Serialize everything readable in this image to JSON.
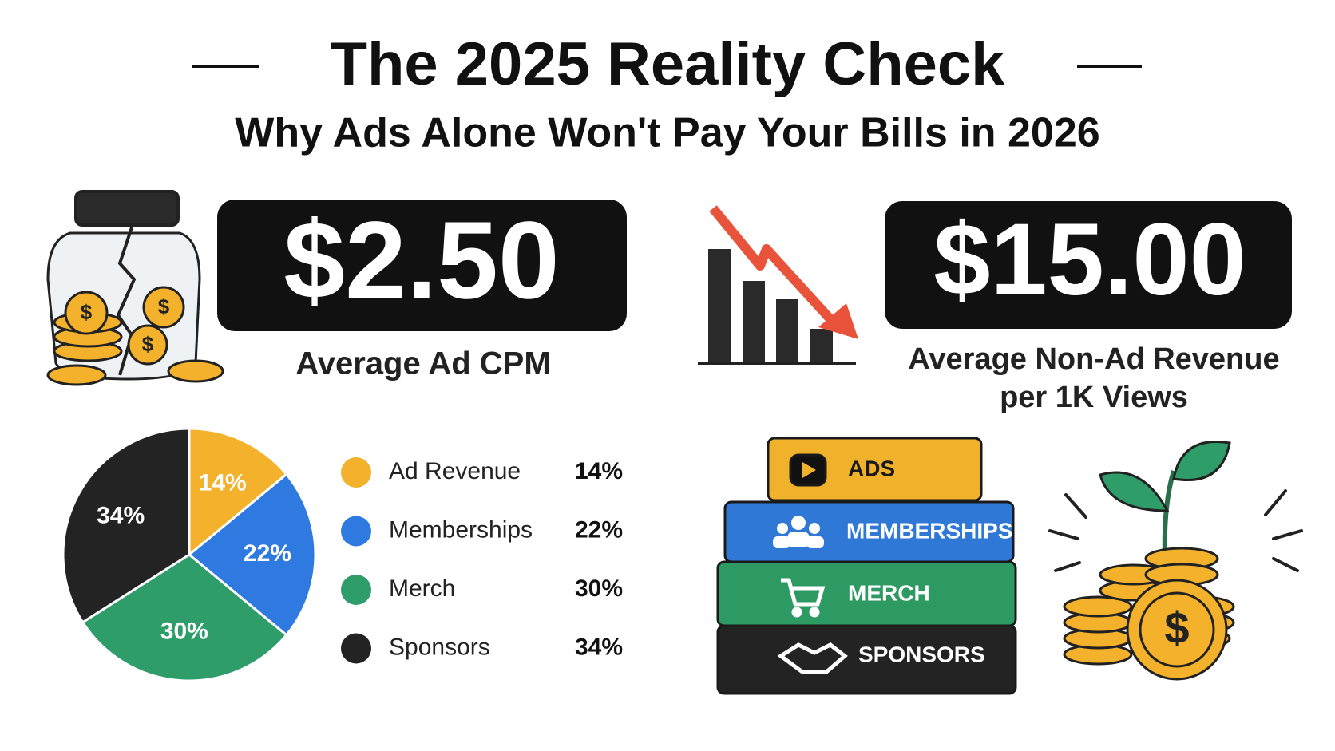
{
  "header": {
    "title": "The 2025 Reality Check",
    "subtitle": "Why Ads Alone Won't Pay Your Bills in 2026"
  },
  "stats": [
    {
      "value": "$2.50",
      "label": [
        "Average Ad CPM"
      ]
    },
    {
      "value": "$15.00",
      "label": [
        "Average Non-Ad Revenue",
        "per 1K Views"
      ]
    }
  ],
  "chart_data": {
    "type": "pie",
    "categories": [
      "Ad Revenue",
      "Memberships",
      "Merch",
      "Sponsors"
    ],
    "values": [
      14,
      22,
      30,
      34
    ],
    "value_labels": [
      "14%",
      "22%",
      "30%",
      "34%"
    ],
    "colors": [
      "#f3b12c",
      "#2f7ae0",
      "#2e9d69",
      "#232323"
    ]
  },
  "stack": {
    "blocks": [
      "ADS",
      "MEMBERSHIPS",
      "MERCH",
      "SPONSORS"
    ]
  }
}
